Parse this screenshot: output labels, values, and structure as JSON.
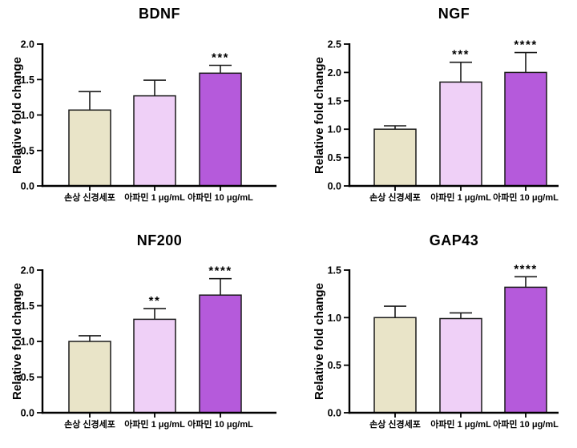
{
  "page": {
    "background": "#ffffff"
  },
  "styles": {
    "bar_colors": [
      "#e9e4c8",
      "#efd0f7",
      "#b55adb"
    ],
    "bar_outline": "#1a1a1a",
    "axis_color": "#000000",
    "text_color": "#000000"
  },
  "chart_data": [
    {
      "type": "bar",
      "title": "BDNF",
      "ylabel": "Relative fold change",
      "xlabel": "",
      "categories": [
        "손상 신경세포",
        "아파민 1 μg/mL",
        "아파민 10 μg/mL"
      ],
      "values": [
        1.07,
        1.27,
        1.59
      ],
      "errors_up": [
        0.26,
        0.22,
        0.11
      ],
      "significance": [
        "",
        "",
        "***"
      ],
      "ylim": [
        0,
        2.0
      ],
      "yticks": [
        "0.0",
        "0.5",
        "1.0",
        "1.5",
        "2.0"
      ],
      "grid": false,
      "legend": null
    },
    {
      "type": "bar",
      "title": "NGF",
      "ylabel": "Relative fold change",
      "xlabel": "",
      "categories": [
        "손상 신경세포",
        "아파민 1 μg/mL",
        "아파민 10 μg/mL"
      ],
      "values": [
        1.0,
        1.83,
        2.0
      ],
      "errors_up": [
        0.06,
        0.35,
        0.35
      ],
      "significance": [
        "",
        "***",
        "****"
      ],
      "ylim": [
        0,
        2.5
      ],
      "yticks": [
        "0.0",
        "0.5",
        "1.0",
        "1.5",
        "2.0",
        "2.5"
      ],
      "grid": false,
      "legend": null
    },
    {
      "type": "bar",
      "title": "NF200",
      "ylabel": "Relative fold change",
      "xlabel": "",
      "categories": [
        "손상 신경세포",
        "아파민 1 μg/mL",
        "아파민 10 μg/mL"
      ],
      "values": [
        1.0,
        1.31,
        1.65
      ],
      "errors_up": [
        0.08,
        0.15,
        0.23
      ],
      "significance": [
        "",
        "**",
        "****"
      ],
      "ylim": [
        0,
        2.0
      ],
      "yticks": [
        "0.0",
        "0.5",
        "1.0",
        "1.5",
        "2.0"
      ],
      "grid": false,
      "legend": null
    },
    {
      "type": "bar",
      "title": "GAP43",
      "ylabel": "Relative fold change",
      "xlabel": "",
      "categories": [
        "손상 신경세포",
        "아파민 1 μg/mL",
        "아파민 10 μg/mL"
      ],
      "values": [
        1.0,
        0.99,
        1.32
      ],
      "errors_up": [
        0.12,
        0.06,
        0.11
      ],
      "significance": [
        "",
        "",
        "****"
      ],
      "ylim": [
        0,
        1.5
      ],
      "yticks": [
        "0.0",
        "0.5",
        "1.0",
        "1.5"
      ],
      "grid": false,
      "legend": null
    }
  ]
}
